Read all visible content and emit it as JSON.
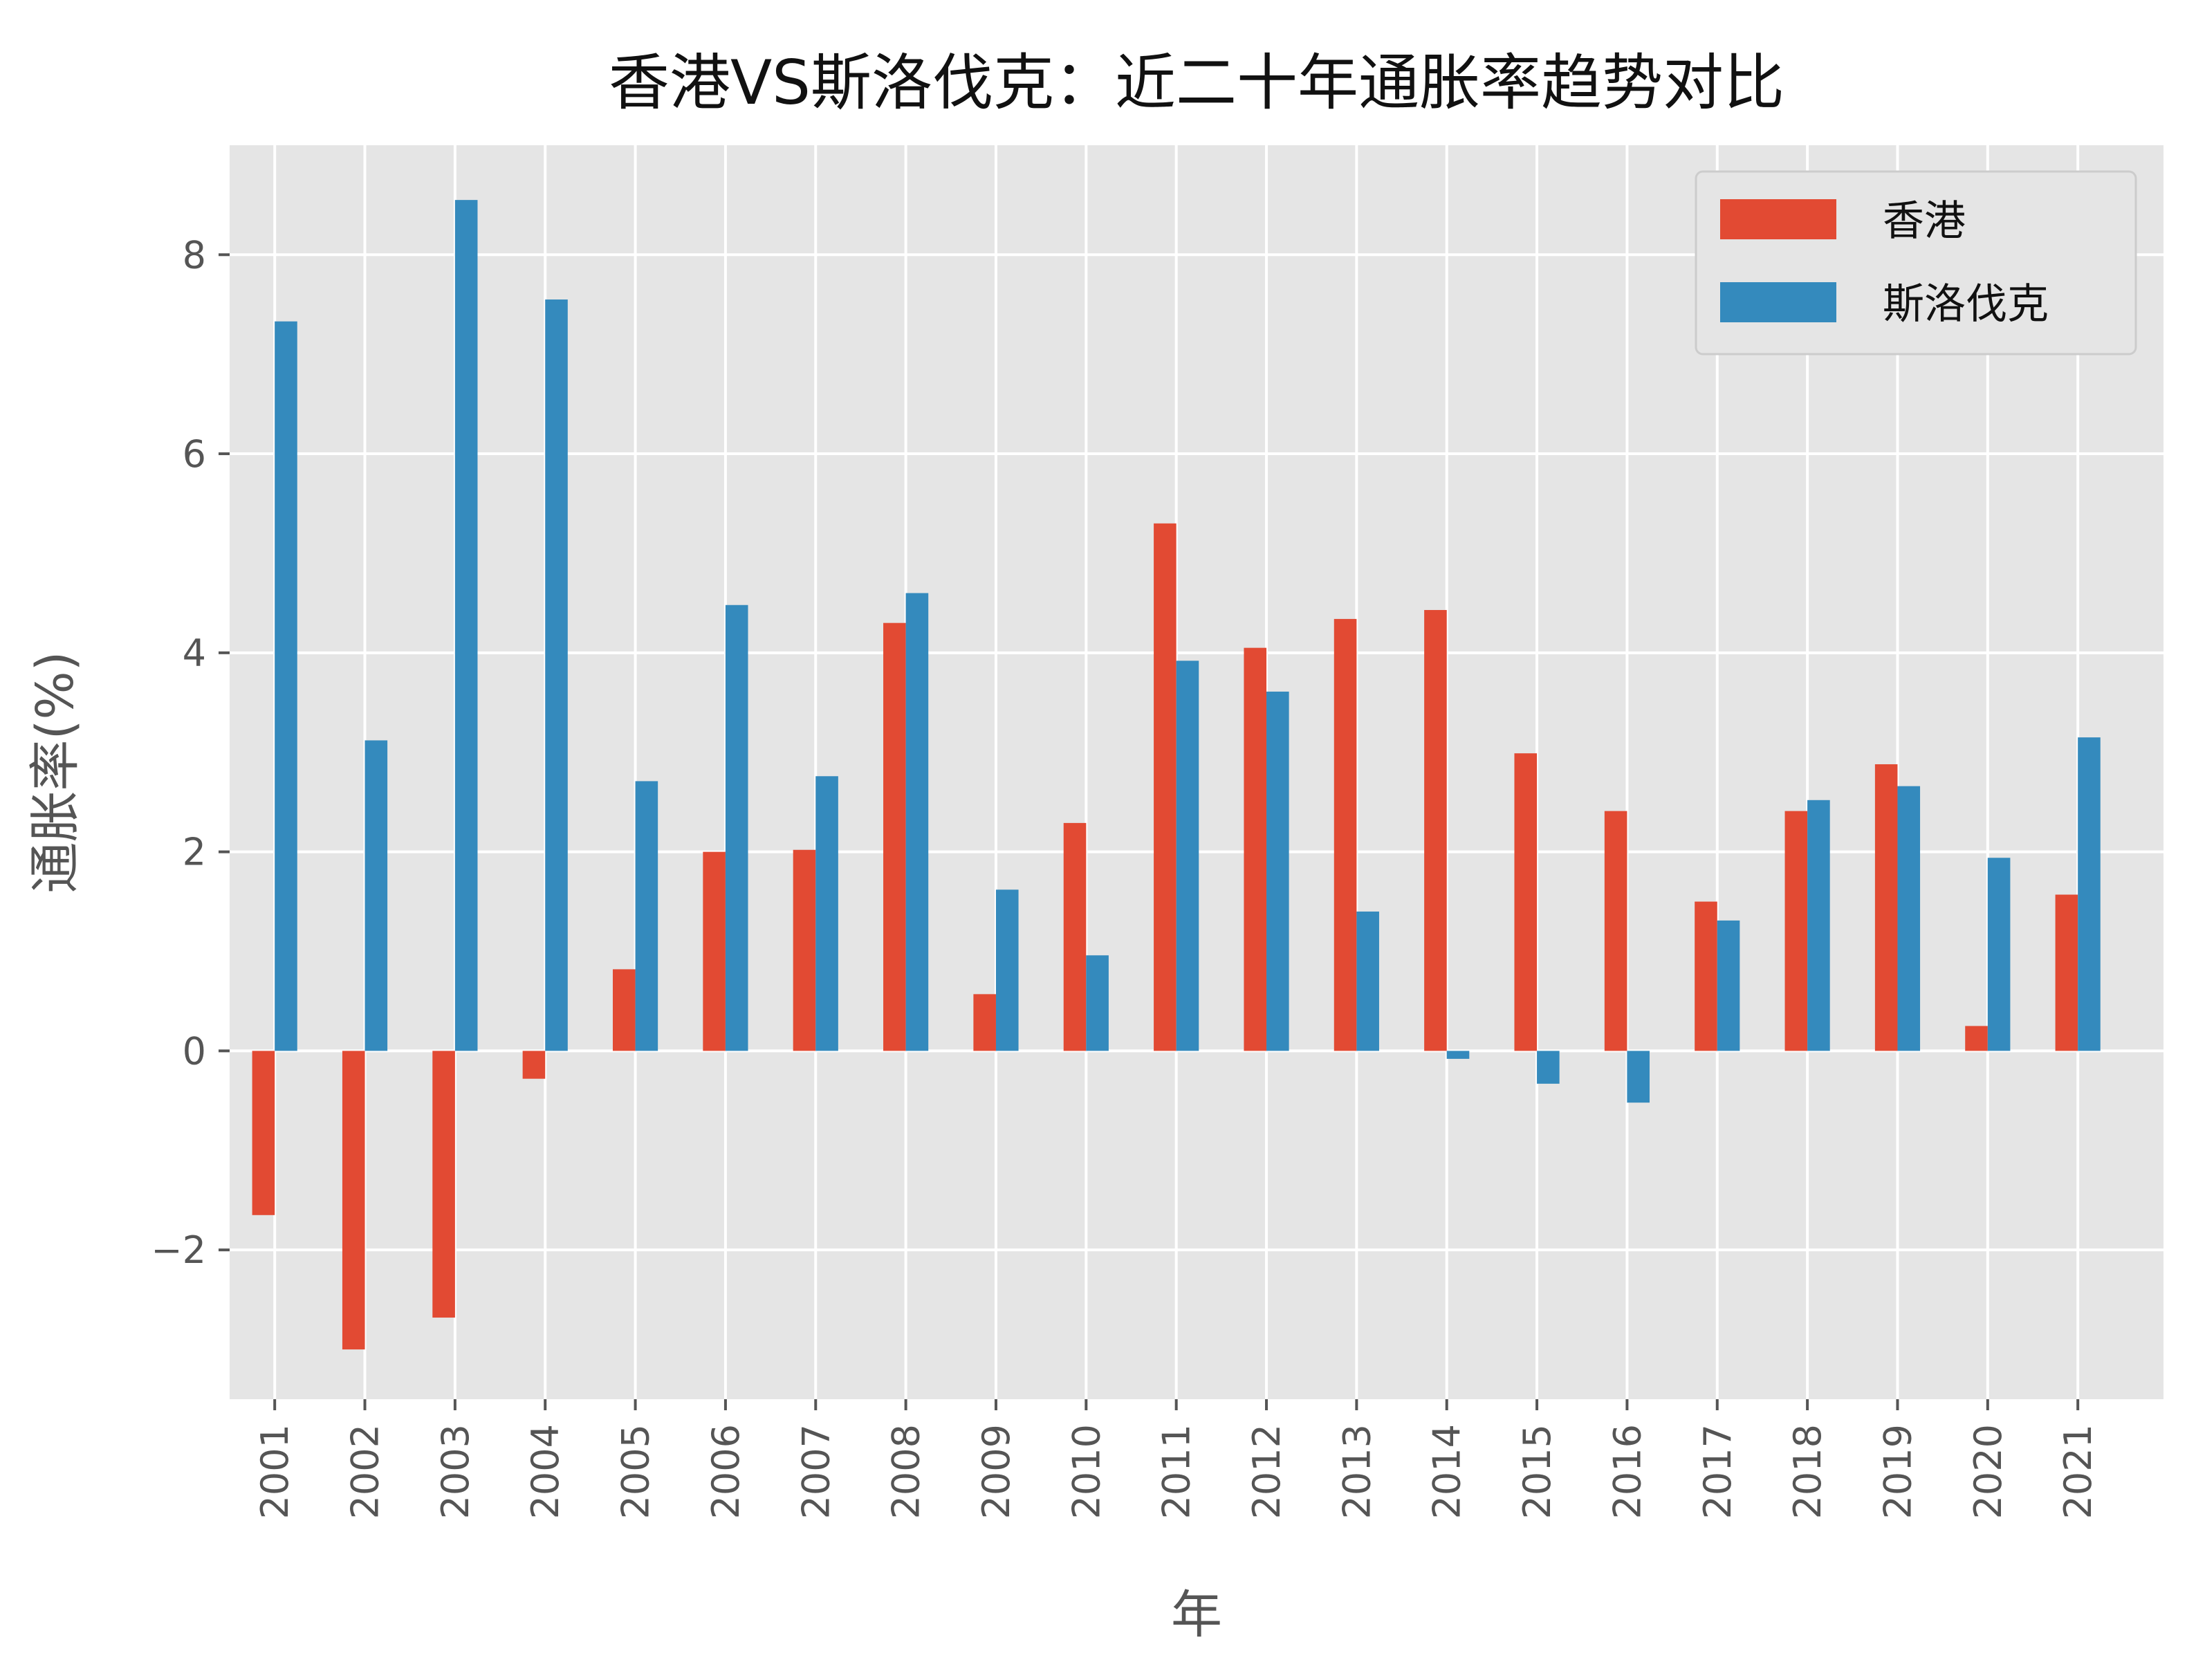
{
  "colors": {
    "plot_background": "#e5e5e5",
    "grid": "#ffffff",
    "hong_kong": "#e24a33",
    "slovakia": "#348abd",
    "text": "#555555",
    "title": "#111111"
  },
  "chart_data": {
    "type": "bar",
    "title": "香港VS斯洛伐克：近二十年通胀率趋势对比",
    "xlabel": "年",
    "ylabel": "通胀率(%)",
    "ylim": [
      -3.5,
      9.1
    ],
    "yticks": [
      -2,
      0,
      2,
      4,
      6,
      8
    ],
    "ytick_labels": [
      "−2",
      "0",
      "2",
      "4",
      "6",
      "8"
    ],
    "grid": true,
    "legend_position": "top-right",
    "categories": [
      "2001",
      "2002",
      "2003",
      "2004",
      "2005",
      "2006",
      "2007",
      "2008",
      "2009",
      "2010",
      "2011",
      "2012",
      "2013",
      "2014",
      "2015",
      "2016",
      "2017",
      "2018",
      "2019",
      "2020",
      "2021"
    ],
    "series": [
      {
        "name": "香港",
        "color": "#e24a33",
        "values": [
          -1.65,
          -3.0,
          -2.68,
          -0.28,
          0.82,
          2.0,
          2.02,
          4.3,
          0.57,
          2.29,
          5.3,
          4.05,
          4.34,
          4.43,
          2.99,
          2.41,
          1.5,
          2.41,
          2.88,
          0.25,
          1.57
        ]
      },
      {
        "name": "斯洛伐克",
        "color": "#348abd",
        "values": [
          7.33,
          3.12,
          8.55,
          7.55,
          2.71,
          4.48,
          2.76,
          4.6,
          1.62,
          0.96,
          3.92,
          3.61,
          1.4,
          -0.08,
          -0.33,
          -0.52,
          1.31,
          2.52,
          2.66,
          1.94,
          3.15
        ]
      }
    ]
  }
}
